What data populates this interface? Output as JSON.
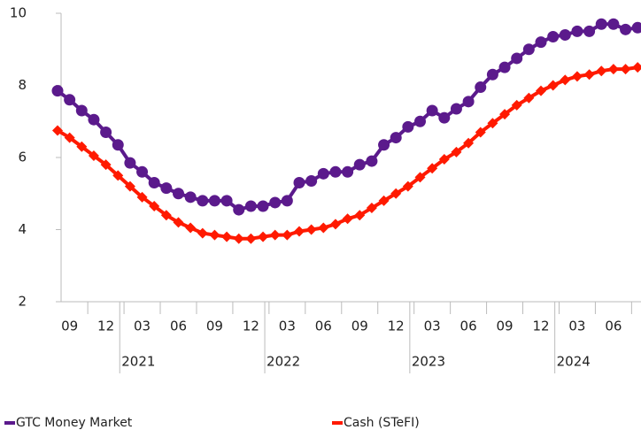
{
  "chart_data": {
    "type": "line",
    "categories": [
      null,
      "09",
      null,
      null,
      "12",
      null,
      null,
      "03",
      null,
      null,
      "06",
      null,
      null,
      "09",
      null,
      null,
      "12",
      null,
      null,
      "03",
      null,
      null,
      "06",
      null,
      null,
      "09",
      null,
      null,
      "12",
      null,
      null,
      "03",
      null,
      null,
      "06",
      null,
      null,
      "09",
      null,
      null,
      "12",
      null,
      null,
      "03",
      null,
      null,
      "06",
      null,
      null
    ],
    "years": [
      "2021",
      "2022",
      "2023",
      "2024"
    ],
    "series": [
      {
        "name": "GTC Money Market",
        "color": "#5b1a8c",
        "marker": "circle",
        "values": [
          7.85,
          7.6,
          7.3,
          7.05,
          6.7,
          6.35,
          5.85,
          5.6,
          5.3,
          5.15,
          5.0,
          4.9,
          4.8,
          4.8,
          4.8,
          4.55,
          4.65,
          4.65,
          4.75,
          4.8,
          5.3,
          5.35,
          5.55,
          5.6,
          5.6,
          5.8,
          5.9,
          6.35,
          6.55,
          6.85,
          7.0,
          7.3,
          7.1,
          7.35,
          7.55,
          7.95,
          8.3,
          8.5,
          8.75,
          9.0,
          9.2,
          9.35,
          9.4,
          9.5,
          9.5,
          9.7,
          9.7,
          9.55,
          9.6
        ]
      },
      {
        "name": "Cash (STeFI)",
        "color": "#ff1a00",
        "marker": "diamond",
        "values": [
          6.75,
          6.55,
          6.3,
          6.05,
          5.8,
          5.5,
          5.2,
          4.9,
          4.65,
          4.4,
          4.2,
          4.05,
          3.9,
          3.85,
          3.8,
          3.75,
          3.75,
          3.8,
          3.85,
          3.85,
          3.95,
          4.0,
          4.05,
          4.15,
          4.3,
          4.4,
          4.6,
          4.8,
          5.0,
          5.2,
          5.45,
          5.7,
          5.95,
          6.15,
          6.4,
          6.7,
          6.95,
          7.2,
          7.45,
          7.65,
          7.85,
          8.0,
          8.15,
          8.25,
          8.3,
          8.4,
          8.45,
          8.45,
          8.5
        ]
      }
    ],
    "ylim": [
      2,
      10
    ],
    "yticks": [
      2,
      4,
      6,
      8,
      10
    ],
    "grid": false,
    "legend": "bottom"
  }
}
